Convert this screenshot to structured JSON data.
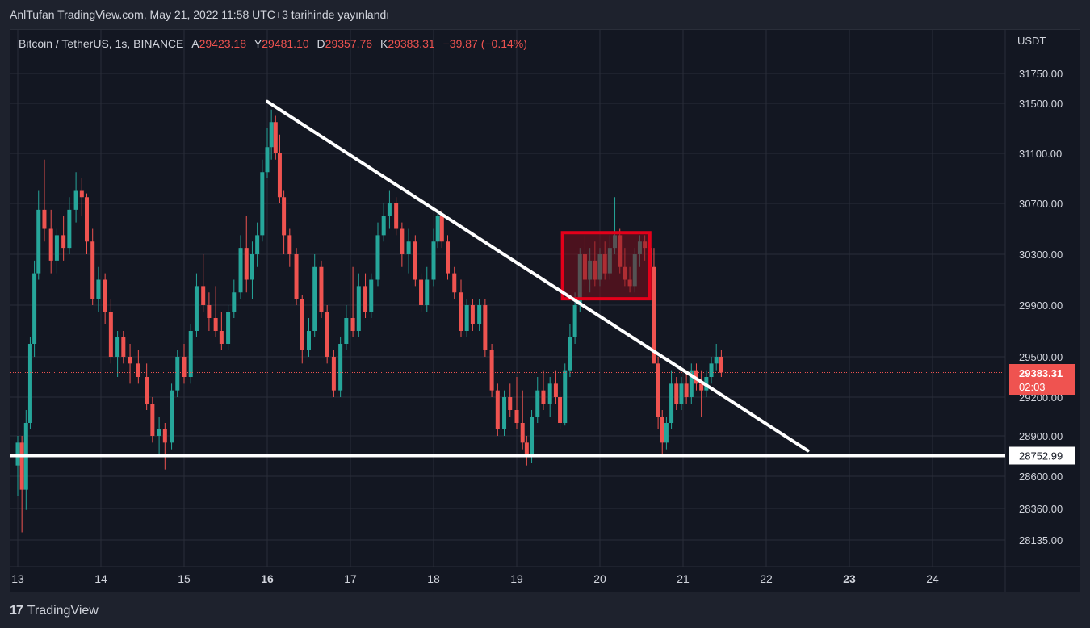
{
  "header": {
    "published_line": "AnlTufan TradingView.com, May 21, 2022 11:58 UTC+3 tarihinde yayınlandı"
  },
  "legend": {
    "symbol": "Bitcoin / TetherUS, 1s, BINANCE",
    "open_label": "A",
    "open": "29423.18",
    "high_label": "Y",
    "high": "29481.10",
    "low_label": "D",
    "low": "29357.76",
    "close_label": "K",
    "close": "29383.31",
    "change": "−39.87 (−0.14%)"
  },
  "price_axis": {
    "currency": "USDT"
  },
  "footer": {
    "logo": "17",
    "brand": "TradingView"
  },
  "colors": {
    "up": "#26a69a",
    "down": "#ef5350",
    "background": "#131722",
    "grid": "#2a2e39",
    "box_fill": "#7a0f1b",
    "box_border": "#e4001a",
    "line": "#ffffff"
  },
  "chart_data": {
    "type": "candlestick",
    "symbol": "BTC/USDT",
    "interval": "1s",
    "exchange": "BINANCE",
    "x_ticks": [
      "13",
      "14",
      "15",
      "16",
      "17",
      "18",
      "19",
      "20",
      "21",
      "22",
      "23",
      "24"
    ],
    "y_ticks": [
      "31750.00",
      "31500.00",
      "31100.00",
      "30700.00",
      "30300.00",
      "29900.00",
      "29500.00",
      "29200.00",
      "28900.00",
      "28600.00",
      "28360.00",
      "28135.00"
    ],
    "y_tick_values": [
      31750,
      31500,
      31100,
      30700,
      30300,
      29900,
      29500,
      29200,
      28900,
      28600,
      28360,
      28135
    ],
    "x_range_days": [
      13,
      24.8
    ],
    "grid": true,
    "last_price": {
      "value": 29383.31,
      "label": "29383.31",
      "countdown": "02:03"
    },
    "support_level": {
      "value": 28752.99,
      "label": "28752.99"
    },
    "trendline": {
      "from": {
        "day": 16.0,
        "price": 31515
      },
      "to": {
        "day": 22.5,
        "price": 28790
      }
    },
    "highlight_box": {
      "day_start": 19.55,
      "day_end": 20.6,
      "price_low": 29950,
      "price_high": 30470
    },
    "candles": [
      {
        "d": 13.0,
        "o": 28680,
        "h": 28900,
        "l": 28450,
        "c": 28850
      },
      {
        "d": 13.05,
        "o": 28850,
        "h": 28900,
        "l": 28190,
        "c": 28500
      },
      {
        "d": 13.1,
        "o": 28500,
        "h": 29100,
        "l": 28350,
        "c": 29000
      },
      {
        "d": 13.15,
        "o": 29000,
        "h": 29650,
        "l": 28950,
        "c": 29600
      },
      {
        "d": 13.2,
        "o": 29600,
        "h": 30250,
        "l": 29500,
        "c": 30150
      },
      {
        "d": 13.25,
        "o": 30150,
        "h": 30800,
        "l": 30100,
        "c": 30650
      },
      {
        "d": 13.32,
        "o": 30650,
        "h": 31050,
        "l": 30400,
        "c": 30500
      },
      {
        "d": 13.4,
        "o": 30500,
        "h": 30650,
        "l": 30150,
        "c": 30250
      },
      {
        "d": 13.47,
        "o": 30250,
        "h": 30500,
        "l": 30150,
        "c": 30450
      },
      {
        "d": 13.55,
        "o": 30450,
        "h": 30600,
        "l": 30250,
        "c": 30350
      },
      {
        "d": 13.62,
        "o": 30350,
        "h": 30750,
        "l": 30300,
        "c": 30650
      },
      {
        "d": 13.7,
        "o": 30650,
        "h": 30950,
        "l": 30550,
        "c": 30800
      },
      {
        "d": 13.77,
        "o": 30800,
        "h": 30900,
        "l": 30600,
        "c": 30750
      },
      {
        "d": 13.83,
        "o": 30750,
        "h": 30780,
        "l": 30300,
        "c": 30400
      },
      {
        "d": 13.9,
        "o": 30400,
        "h": 30500,
        "l": 29900,
        "c": 29950
      },
      {
        "d": 13.97,
        "o": 29950,
        "h": 30200,
        "l": 29850,
        "c": 30100
      },
      {
        "d": 14.05,
        "o": 30100,
        "h": 30150,
        "l": 29750,
        "c": 29850
      },
      {
        "d": 14.12,
        "o": 29850,
        "h": 29950,
        "l": 29450,
        "c": 29500
      },
      {
        "d": 14.2,
        "o": 29500,
        "h": 29700,
        "l": 29350,
        "c": 29650
      },
      {
        "d": 14.27,
        "o": 29650,
        "h": 29700,
        "l": 29450,
        "c": 29500
      },
      {
        "d": 14.35,
        "o": 29500,
        "h": 29600,
        "l": 29300,
        "c": 29450
      },
      {
        "d": 14.45,
        "o": 29450,
        "h": 29550,
        "l": 29300,
        "c": 29350
      },
      {
        "d": 14.55,
        "o": 29350,
        "h": 29450,
        "l": 29100,
        "c": 29150
      },
      {
        "d": 14.62,
        "o": 29150,
        "h": 29200,
        "l": 28850,
        "c": 28900
      },
      {
        "d": 14.7,
        "o": 28900,
        "h": 29050,
        "l": 28750,
        "c": 28950
      },
      {
        "d": 14.77,
        "o": 28950,
        "h": 29000,
        "l": 28650,
        "c": 28850
      },
      {
        "d": 14.85,
        "o": 28850,
        "h": 29300,
        "l": 28800,
        "c": 29250
      },
      {
        "d": 14.92,
        "o": 29250,
        "h": 29550,
        "l": 29200,
        "c": 29500
      },
      {
        "d": 15.0,
        "o": 29500,
        "h": 29600,
        "l": 29300,
        "c": 29350
      },
      {
        "d": 15.08,
        "o": 29350,
        "h": 29750,
        "l": 29300,
        "c": 29700
      },
      {
        "d": 15.15,
        "o": 29700,
        "h": 30150,
        "l": 29650,
        "c": 30050
      },
      {
        "d": 15.23,
        "o": 30050,
        "h": 30300,
        "l": 29850,
        "c": 29900
      },
      {
        "d": 15.3,
        "o": 29900,
        "h": 30000,
        "l": 29700,
        "c": 29800
      },
      {
        "d": 15.38,
        "o": 29800,
        "h": 30050,
        "l": 29650,
        "c": 29700
      },
      {
        "d": 15.45,
        "o": 29700,
        "h": 29850,
        "l": 29550,
        "c": 29600
      },
      {
        "d": 15.53,
        "o": 29600,
        "h": 29900,
        "l": 29550,
        "c": 29850
      },
      {
        "d": 15.6,
        "o": 29850,
        "h": 30100,
        "l": 29800,
        "c": 30000
      },
      {
        "d": 15.68,
        "o": 30000,
        "h": 30450,
        "l": 29950,
        "c": 30350
      },
      {
        "d": 15.75,
        "o": 30350,
        "h": 30600,
        "l": 30000,
        "c": 30100
      },
      {
        "d": 15.82,
        "o": 30100,
        "h": 30400,
        "l": 29950,
        "c": 30300
      },
      {
        "d": 15.88,
        "o": 30300,
        "h": 30550,
        "l": 30200,
        "c": 30450
      },
      {
        "d": 15.94,
        "o": 30450,
        "h": 31050,
        "l": 30400,
        "c": 30950
      },
      {
        "d": 16.0,
        "o": 30950,
        "h": 31300,
        "l": 30900,
        "c": 31150
      },
      {
        "d": 16.05,
        "o": 31150,
        "h": 31450,
        "l": 31050,
        "c": 31350
      },
      {
        "d": 16.1,
        "o": 31350,
        "h": 31400,
        "l": 31050,
        "c": 31100
      },
      {
        "d": 16.15,
        "o": 31100,
        "h": 31250,
        "l": 30700,
        "c": 30750
      },
      {
        "d": 16.2,
        "o": 30750,
        "h": 30800,
        "l": 30300,
        "c": 30450
      },
      {
        "d": 16.27,
        "o": 30450,
        "h": 30500,
        "l": 30200,
        "c": 30300
      },
      {
        "d": 16.35,
        "o": 30300,
        "h": 30350,
        "l": 29900,
        "c": 29950
      },
      {
        "d": 16.42,
        "o": 29950,
        "h": 29980,
        "l": 29450,
        "c": 29550
      },
      {
        "d": 16.5,
        "o": 29550,
        "h": 29800,
        "l": 29500,
        "c": 29700
      },
      {
        "d": 16.57,
        "o": 29700,
        "h": 30300,
        "l": 29650,
        "c": 30200
      },
      {
        "d": 16.65,
        "o": 30200,
        "h": 30250,
        "l": 29800,
        "c": 29850
      },
      {
        "d": 16.72,
        "o": 29850,
        "h": 29900,
        "l": 29450,
        "c": 29500
      },
      {
        "d": 16.8,
        "o": 29500,
        "h": 29550,
        "l": 29200,
        "c": 29250
      },
      {
        "d": 16.88,
        "o": 29250,
        "h": 29650,
        "l": 29200,
        "c": 29600
      },
      {
        "d": 16.95,
        "o": 29600,
        "h": 29900,
        "l": 29550,
        "c": 29800
      },
      {
        "d": 17.03,
        "o": 29800,
        "h": 30200,
        "l": 29650,
        "c": 29700
      },
      {
        "d": 17.1,
        "o": 29700,
        "h": 30150,
        "l": 29650,
        "c": 30050
      },
      {
        "d": 17.18,
        "o": 30050,
        "h": 30150,
        "l": 29800,
        "c": 29850
      },
      {
        "d": 17.25,
        "o": 29850,
        "h": 30150,
        "l": 29800,
        "c": 30100
      },
      {
        "d": 17.33,
        "o": 30100,
        "h": 30550,
        "l": 30050,
        "c": 30450
      },
      {
        "d": 17.4,
        "o": 30450,
        "h": 30700,
        "l": 30400,
        "c": 30600
      },
      {
        "d": 17.47,
        "o": 30600,
        "h": 30800,
        "l": 30500,
        "c": 30700
      },
      {
        "d": 17.55,
        "o": 30700,
        "h": 30750,
        "l": 30450,
        "c": 30500
      },
      {
        "d": 17.62,
        "o": 30500,
        "h": 30550,
        "l": 30200,
        "c": 30300
      },
      {
        "d": 17.7,
        "o": 30300,
        "h": 30500,
        "l": 30150,
        "c": 30400
      },
      {
        "d": 17.78,
        "o": 30400,
        "h": 30450,
        "l": 30050,
        "c": 30100
      },
      {
        "d": 17.85,
        "o": 30100,
        "h": 30150,
        "l": 29850,
        "c": 29900
      },
      {
        "d": 17.92,
        "o": 29900,
        "h": 30200,
        "l": 29850,
        "c": 30100
      },
      {
        "d": 18.0,
        "o": 30100,
        "h": 30500,
        "l": 30050,
        "c": 30400
      },
      {
        "d": 18.05,
        "o": 30400,
        "h": 30650,
        "l": 30350,
        "c": 30600
      },
      {
        "d": 18.1,
        "o": 30600,
        "h": 30650,
        "l": 30350,
        "c": 30400
      },
      {
        "d": 18.17,
        "o": 30400,
        "h": 30450,
        "l": 30100,
        "c": 30150
      },
      {
        "d": 18.25,
        "o": 30150,
        "h": 30200,
        "l": 29950,
        "c": 30000
      },
      {
        "d": 18.33,
        "o": 30000,
        "h": 30100,
        "l": 29650,
        "c": 29700
      },
      {
        "d": 18.4,
        "o": 29700,
        "h": 29950,
        "l": 29650,
        "c": 29900
      },
      {
        "d": 18.47,
        "o": 29900,
        "h": 29950,
        "l": 29700,
        "c": 29750
      },
      {
        "d": 18.55,
        "o": 29750,
        "h": 29950,
        "l": 29700,
        "c": 29900
      },
      {
        "d": 18.62,
        "o": 29900,
        "h": 29950,
        "l": 29500,
        "c": 29550
      },
      {
        "d": 18.7,
        "o": 29550,
        "h": 29600,
        "l": 29200,
        "c": 29250
      },
      {
        "d": 18.77,
        "o": 29250,
        "h": 29300,
        "l": 28900,
        "c": 28950
      },
      {
        "d": 18.85,
        "o": 28950,
        "h": 29250,
        "l": 28900,
        "c": 29200
      },
      {
        "d": 18.92,
        "o": 29200,
        "h": 29300,
        "l": 29050,
        "c": 29100
      },
      {
        "d": 19.0,
        "o": 29100,
        "h": 29350,
        "l": 28950,
        "c": 29000
      },
      {
        "d": 19.07,
        "o": 29000,
        "h": 29250,
        "l": 28800,
        "c": 28850
      },
      {
        "d": 19.12,
        "o": 28850,
        "h": 28900,
        "l": 28680,
        "c": 28750
      },
      {
        "d": 19.18,
        "o": 28750,
        "h": 29100,
        "l": 28700,
        "c": 29050
      },
      {
        "d": 19.25,
        "o": 29050,
        "h": 29350,
        "l": 29000,
        "c": 29250
      },
      {
        "d": 19.32,
        "o": 29250,
        "h": 29400,
        "l": 29100,
        "c": 29150
      },
      {
        "d": 19.4,
        "o": 29150,
        "h": 29350,
        "l": 29050,
        "c": 29300
      },
      {
        "d": 19.47,
        "o": 29300,
        "h": 29400,
        "l": 29150,
        "c": 29200
      },
      {
        "d": 19.52,
        "o": 29200,
        "h": 29250,
        "l": 28950,
        "c": 29000
      },
      {
        "d": 19.58,
        "o": 29000,
        "h": 29450,
        "l": 28980,
        "c": 29400
      },
      {
        "d": 19.64,
        "o": 29400,
        "h": 29750,
        "l": 29350,
        "c": 29650
      },
      {
        "d": 19.7,
        "o": 29650,
        "h": 30000,
        "l": 29600,
        "c": 29900
      },
      {
        "d": 19.76,
        "o": 29900,
        "h": 30350,
        "l": 29850,
        "c": 30300
      },
      {
        "d": 19.82,
        "o": 30300,
        "h": 30450,
        "l": 30050,
        "c": 30100
      },
      {
        "d": 19.88,
        "o": 30100,
        "h": 30350,
        "l": 30000,
        "c": 30250
      },
      {
        "d": 19.94,
        "o": 30250,
        "h": 30400,
        "l": 30050,
        "c": 30100
      },
      {
        "d": 20.0,
        "o": 30100,
        "h": 30350,
        "l": 30050,
        "c": 30300
      },
      {
        "d": 20.06,
        "o": 30300,
        "h": 30400,
        "l": 30100,
        "c": 30150
      },
      {
        "d": 20.12,
        "o": 30150,
        "h": 30450,
        "l": 30100,
        "c": 30350
      },
      {
        "d": 20.18,
        "o": 30350,
        "h": 30750,
        "l": 30300,
        "c": 30450
      },
      {
        "d": 20.24,
        "o": 30450,
        "h": 30500,
        "l": 30150,
        "c": 30200
      },
      {
        "d": 20.3,
        "o": 30200,
        "h": 30350,
        "l": 30050,
        "c": 30100
      },
      {
        "d": 20.36,
        "o": 30100,
        "h": 30200,
        "l": 30000,
        "c": 30050
      },
      {
        "d": 20.42,
        "o": 30050,
        "h": 30350,
        "l": 30000,
        "c": 30300
      },
      {
        "d": 20.48,
        "o": 30300,
        "h": 30450,
        "l": 30200,
        "c": 30400
      },
      {
        "d": 20.54,
        "o": 30400,
        "h": 30450,
        "l": 30250,
        "c": 30350
      },
      {
        "d": 20.6,
        "o": 30350,
        "h": 30400,
        "l": 30100,
        "c": 30200
      },
      {
        "d": 20.65,
        "o": 30200,
        "h": 30350,
        "l": 29450,
        "c": 29450
      },
      {
        "d": 20.7,
        "o": 29450,
        "h": 29500,
        "l": 28950,
        "c": 29050
      },
      {
        "d": 20.75,
        "o": 29050,
        "h": 29100,
        "l": 28750,
        "c": 28850
      },
      {
        "d": 20.8,
        "o": 28850,
        "h": 29050,
        "l": 28800,
        "c": 29000
      },
      {
        "d": 20.86,
        "o": 29000,
        "h": 29400,
        "l": 28950,
        "c": 29300
      },
      {
        "d": 20.92,
        "o": 29300,
        "h": 29350,
        "l": 29100,
        "c": 29150
      },
      {
        "d": 20.98,
        "o": 29150,
        "h": 29350,
        "l": 29100,
        "c": 29300
      },
      {
        "d": 21.04,
        "o": 29300,
        "h": 29400,
        "l": 29150,
        "c": 29200
      },
      {
        "d": 21.1,
        "o": 29200,
        "h": 29450,
        "l": 29150,
        "c": 29400
      },
      {
        "d": 21.16,
        "o": 29400,
        "h": 29450,
        "l": 29250,
        "c": 29300
      },
      {
        "d": 21.22,
        "o": 29300,
        "h": 29400,
        "l": 29050,
        "c": 29250
      },
      {
        "d": 21.28,
        "o": 29250,
        "h": 29400,
        "l": 29200,
        "c": 29350
      },
      {
        "d": 21.34,
        "o": 29350,
        "h": 29500,
        "l": 29300,
        "c": 29450
      },
      {
        "d": 21.4,
        "o": 29450,
        "h": 29600,
        "l": 29400,
        "c": 29500
      },
      {
        "d": 21.46,
        "o": 29500,
        "h": 29550,
        "l": 29350,
        "c": 29383
      }
    ]
  }
}
